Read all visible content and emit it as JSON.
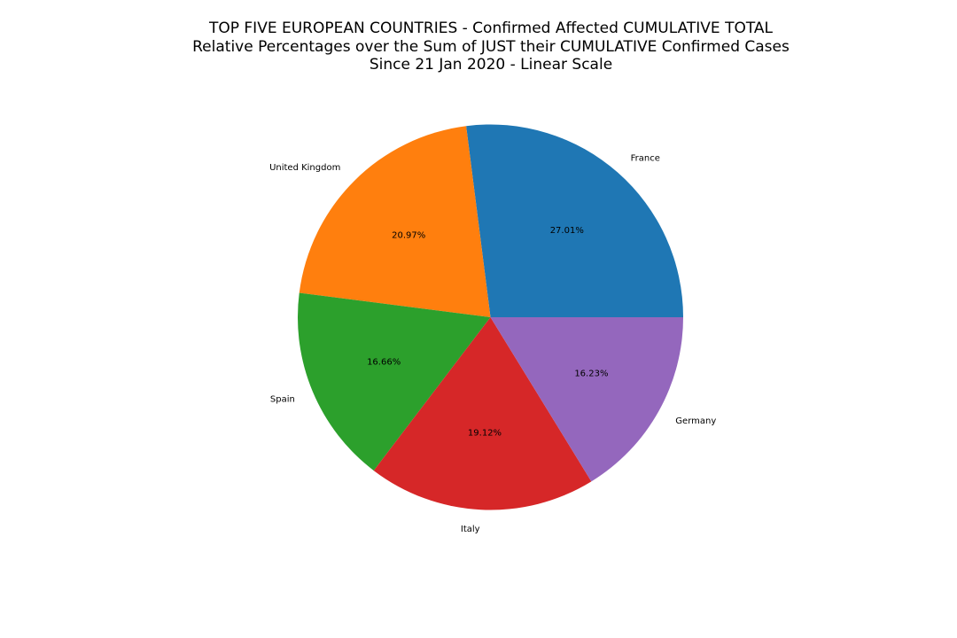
{
  "chart_data": {
    "type": "pie",
    "title_lines": [
      "TOP FIVE EUROPEAN COUNTRIES - Confirmed Affected CUMULATIVE TOTAL",
      "Relative Percentages over the Sum of JUST their CUMULATIVE Confirmed Cases",
      "Since 21 Jan 2020 - Linear Scale"
    ],
    "slices": [
      {
        "label": "France",
        "value": 27.01,
        "pct_label": "27.01%",
        "color": "#1f77b4"
      },
      {
        "label": "United Kingdom",
        "value": 20.97,
        "pct_label": "20.97%",
        "color": "#ff7f0e"
      },
      {
        "label": "Spain",
        "value": 16.66,
        "pct_label": "16.66%",
        "color": "#2ca02c"
      },
      {
        "label": "Italy",
        "value": 19.12,
        "pct_label": "19.12%",
        "color": "#d62728"
      },
      {
        "label": "Germany",
        "value": 16.23,
        "pct_label": "16.23%",
        "color": "#9467bd"
      }
    ],
    "start_angle_deg": 0,
    "direction": "counterclockwise"
  }
}
